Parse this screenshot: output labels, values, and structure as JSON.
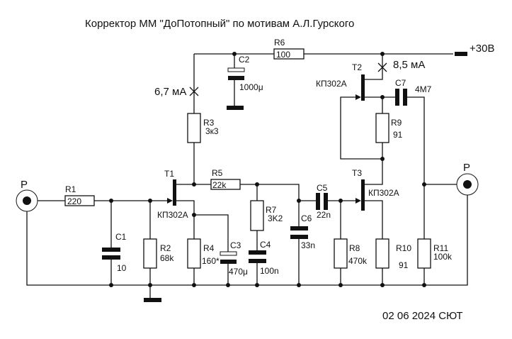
{
  "title": "Корректор ММ \"ДоПотопный\" по мотивам А.Л.Гурского",
  "footer": "02 06 2024 СЮТ",
  "supply": "+30В",
  "currents": {
    "t1": "6,7 мА",
    "t2": "8,5 мА"
  },
  "connectors": {
    "input": "P",
    "output": "P"
  },
  "resistors": {
    "R1": {
      "name": "R1",
      "value": "220"
    },
    "R2": {
      "name": "R2",
      "value": "68k"
    },
    "R3": {
      "name": "R3",
      "value": "3к3"
    },
    "R4": {
      "name": "R4",
      "value": "160*"
    },
    "R5": {
      "name": "R5",
      "value": "22k"
    },
    "R6": {
      "name": "R6",
      "value": "100"
    },
    "R7": {
      "name": "R7",
      "value": "3K2"
    },
    "R8": {
      "name": "R8",
      "value": "470k"
    },
    "R9": {
      "name": "R9",
      "value": "91"
    },
    "R10": {
      "name": "R10",
      "value": "91"
    },
    "R11": {
      "name": "R11",
      "value": "100k"
    }
  },
  "capacitors": {
    "C1": {
      "name": "C1",
      "value": "10"
    },
    "C2": {
      "name": "C2",
      "value": "1000μ"
    },
    "C3": {
      "name": "C3",
      "value": "470μ"
    },
    "C4": {
      "name": "C4",
      "value": "100n"
    },
    "C5": {
      "name": "C5",
      "value": "22n"
    },
    "C6": {
      "name": "C6",
      "value": "33n"
    },
    "C7": {
      "name": "C7",
      "value": "4M7"
    }
  },
  "transistors": {
    "T1": {
      "name": "T1",
      "type": "КП302А"
    },
    "T2": {
      "name": "T2",
      "type": "КП302А"
    },
    "T3": {
      "name": "T3",
      "type": "КП302А"
    }
  }
}
